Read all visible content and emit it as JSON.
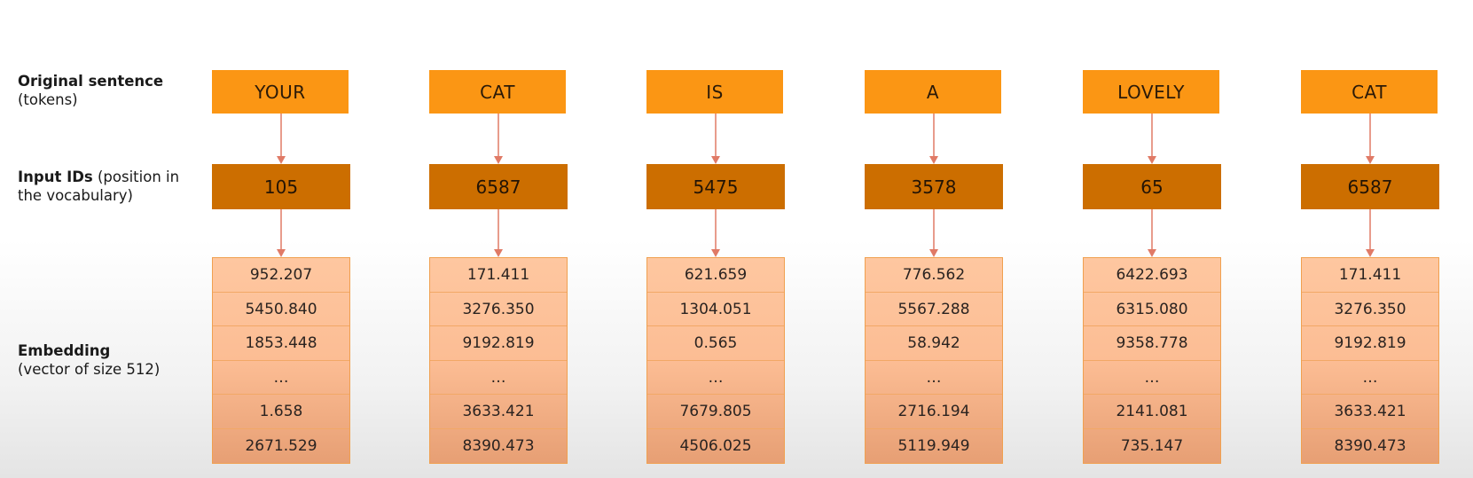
{
  "labels": {
    "tokens_title": "Original sentence",
    "tokens_sub": "(tokens)",
    "ids_title": "Input IDs",
    "ids_sub": "(position in the vocabulary)",
    "emb_title": "Embedding",
    "emb_sub": "(vector of size 512)"
  },
  "colors": {
    "token_box": "#fb9614",
    "input_id_box": "#cc6e00",
    "embedding_cell": "#fdc29b",
    "arrow": "#e07a66"
  },
  "columns": [
    {
      "token": "YOUR",
      "input_id": "105",
      "embedding": [
        "952.207",
        "5450.840",
        "1853.448",
        "…",
        "1.658",
        "2671.529"
      ]
    },
    {
      "token": "CAT",
      "input_id": "6587",
      "embedding": [
        "171.411",
        "3276.350",
        "9192.819",
        "…",
        "3633.421",
        "8390.473"
      ]
    },
    {
      "token": "IS",
      "input_id": "5475",
      "embedding": [
        "621.659",
        "1304.051",
        "0.565",
        "…",
        "7679.805",
        "4506.025"
      ]
    },
    {
      "token": "A",
      "input_id": "3578",
      "embedding": [
        "776.562",
        "5567.288",
        "58.942",
        "…",
        "2716.194",
        "5119.949"
      ]
    },
    {
      "token": "LOVELY",
      "input_id": "65",
      "embedding": [
        "6422.693",
        "6315.080",
        "9358.778",
        "…",
        "2141.081",
        "735.147"
      ]
    },
    {
      "token": "CAT",
      "input_id": "6587",
      "embedding": [
        "171.411",
        "3276.350",
        "9192.819",
        "…",
        "3633.421",
        "8390.473"
      ]
    }
  ]
}
